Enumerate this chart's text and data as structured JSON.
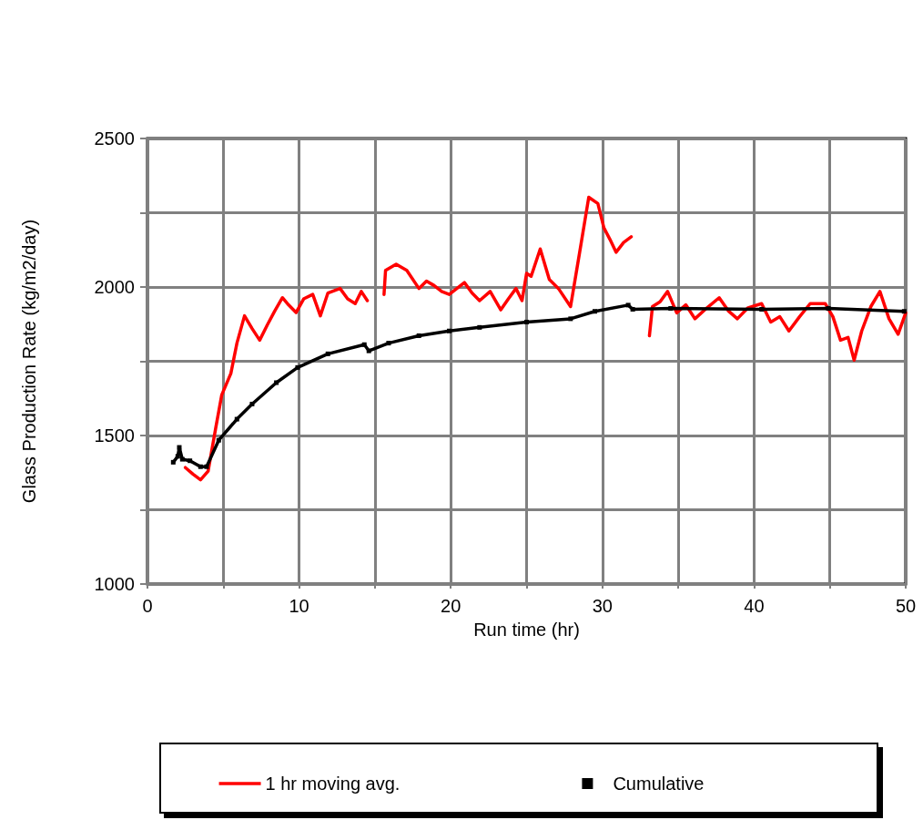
{
  "chart_data": {
    "type": "line",
    "xlabel": "Run time (hr)",
    "ylabel": "Glass Production Rate (kg/m2/day)",
    "xlim": [
      0,
      50
    ],
    "xticks": [
      0,
      {
        "value": 5,
        "label": null
      },
      10,
      {
        "value": 15,
        "label": null
      },
      20,
      {
        "value": 25,
        "label": null
      },
      30,
      {
        "value": 35,
        "label": null
      },
      40,
      {
        "value": 45,
        "label": null
      },
      50
    ],
    "ylim": [
      1000,
      2500
    ],
    "yticks": [
      1000,
      {
        "value": 1250,
        "label": null
      },
      1500,
      {
        "value": 1750,
        "label": null
      },
      2000,
      {
        "value": 2250,
        "label": null
      },
      2500
    ],
    "grid": true,
    "legend": "bottom",
    "series": [
      {
        "name": "1 hr moving avg.",
        "color": "#ff0000",
        "x": [
          2.5,
          3.0,
          3.5,
          4.0,
          4.5,
          4.9,
          5.5,
          5.9,
          6.4,
          6.9,
          7.4,
          7.9,
          8.4,
          8.9,
          9.3,
          9.8,
          10.3,
          10.9,
          11.4,
          11.9,
          12.7,
          13.2,
          13.7,
          14.1,
          14.5,
          15.0,
          15.6,
          15.7,
          16.4,
          17.1,
          17.9,
          18.4,
          18.9,
          19.4,
          19.9,
          20.9,
          21.4,
          21.9,
          22.6,
          23.3,
          23.8,
          24.3,
          24.7,
          25.0,
          25.3,
          25.9,
          26.5,
          27.1,
          27.9,
          28.5,
          29.1,
          29.7,
          30.1,
          30.5,
          30.9,
          31.4,
          31.9,
          32.5,
          33.1,
          33.3,
          33.8,
          34.3,
          34.9,
          35.5,
          36.1,
          36.9,
          37.7,
          38.3,
          38.9,
          39.6,
          40.5,
          41.1,
          41.7,
          42.3,
          43.0,
          43.7,
          44.7,
          45.2,
          45.7,
          46.2,
          46.6,
          47.1,
          47.7,
          48.3,
          48.9,
          49.5,
          50.0
        ],
        "values": [
          1392,
          1370,
          1351,
          1380,
          1525,
          1637,
          1709,
          1811,
          1903,
          1860,
          1821,
          1872,
          1920,
          1964,
          1940,
          1914,
          1960,
          1975,
          1903,
          1980,
          1995,
          1960,
          1944,
          1985,
          1954,
          null,
          1975,
          2056,
          2077,
          2056,
          1995,
          2020,
          2005,
          1985,
          1975,
          2015,
          1980,
          1954,
          1985,
          1923,
          1960,
          1995,
          1954,
          2046,
          2036,
          2128,
          2025,
          1995,
          1934,
          2117,
          2302,
          2281,
          2199,
          2160,
          2117,
          2150,
          2169,
          null,
          1836,
          1934,
          1950,
          1985,
          1913,
          1940,
          1893,
          1930,
          1964,
          1920,
          1893,
          1930,
          1944,
          1882,
          1900,
          1852,
          1900,
          1944,
          1944,
          1900,
          1821,
          1830,
          1754,
          1852,
          1934,
          1985,
          1893,
          1841,
          1913
        ]
      },
      {
        "name": "Cumulative",
        "color": "#000000",
        "marker": "square",
        "x": [
          1.7,
          2.0,
          2.1,
          2.3,
          2.8,
          3.5,
          3.9,
          4.7,
          5.9,
          6.9,
          8.5,
          9.9,
          11.9,
          14.3,
          14.6,
          15.9,
          17.9,
          19.9,
          21.9,
          25.0,
          27.9,
          29.5,
          31.7,
          32.0,
          34.5,
          40.5,
          44.9,
          49.9
        ],
        "values": [
          1410,
          1430,
          1460,
          1420,
          1415,
          1395,
          1395,
          1484,
          1555,
          1606,
          1678,
          1729,
          1775,
          1806,
          1785,
          1811,
          1836,
          1852,
          1864,
          1882,
          1893,
          1918,
          1939,
          1925,
          1928,
          1925,
          1928,
          1918
        ]
      }
    ]
  }
}
